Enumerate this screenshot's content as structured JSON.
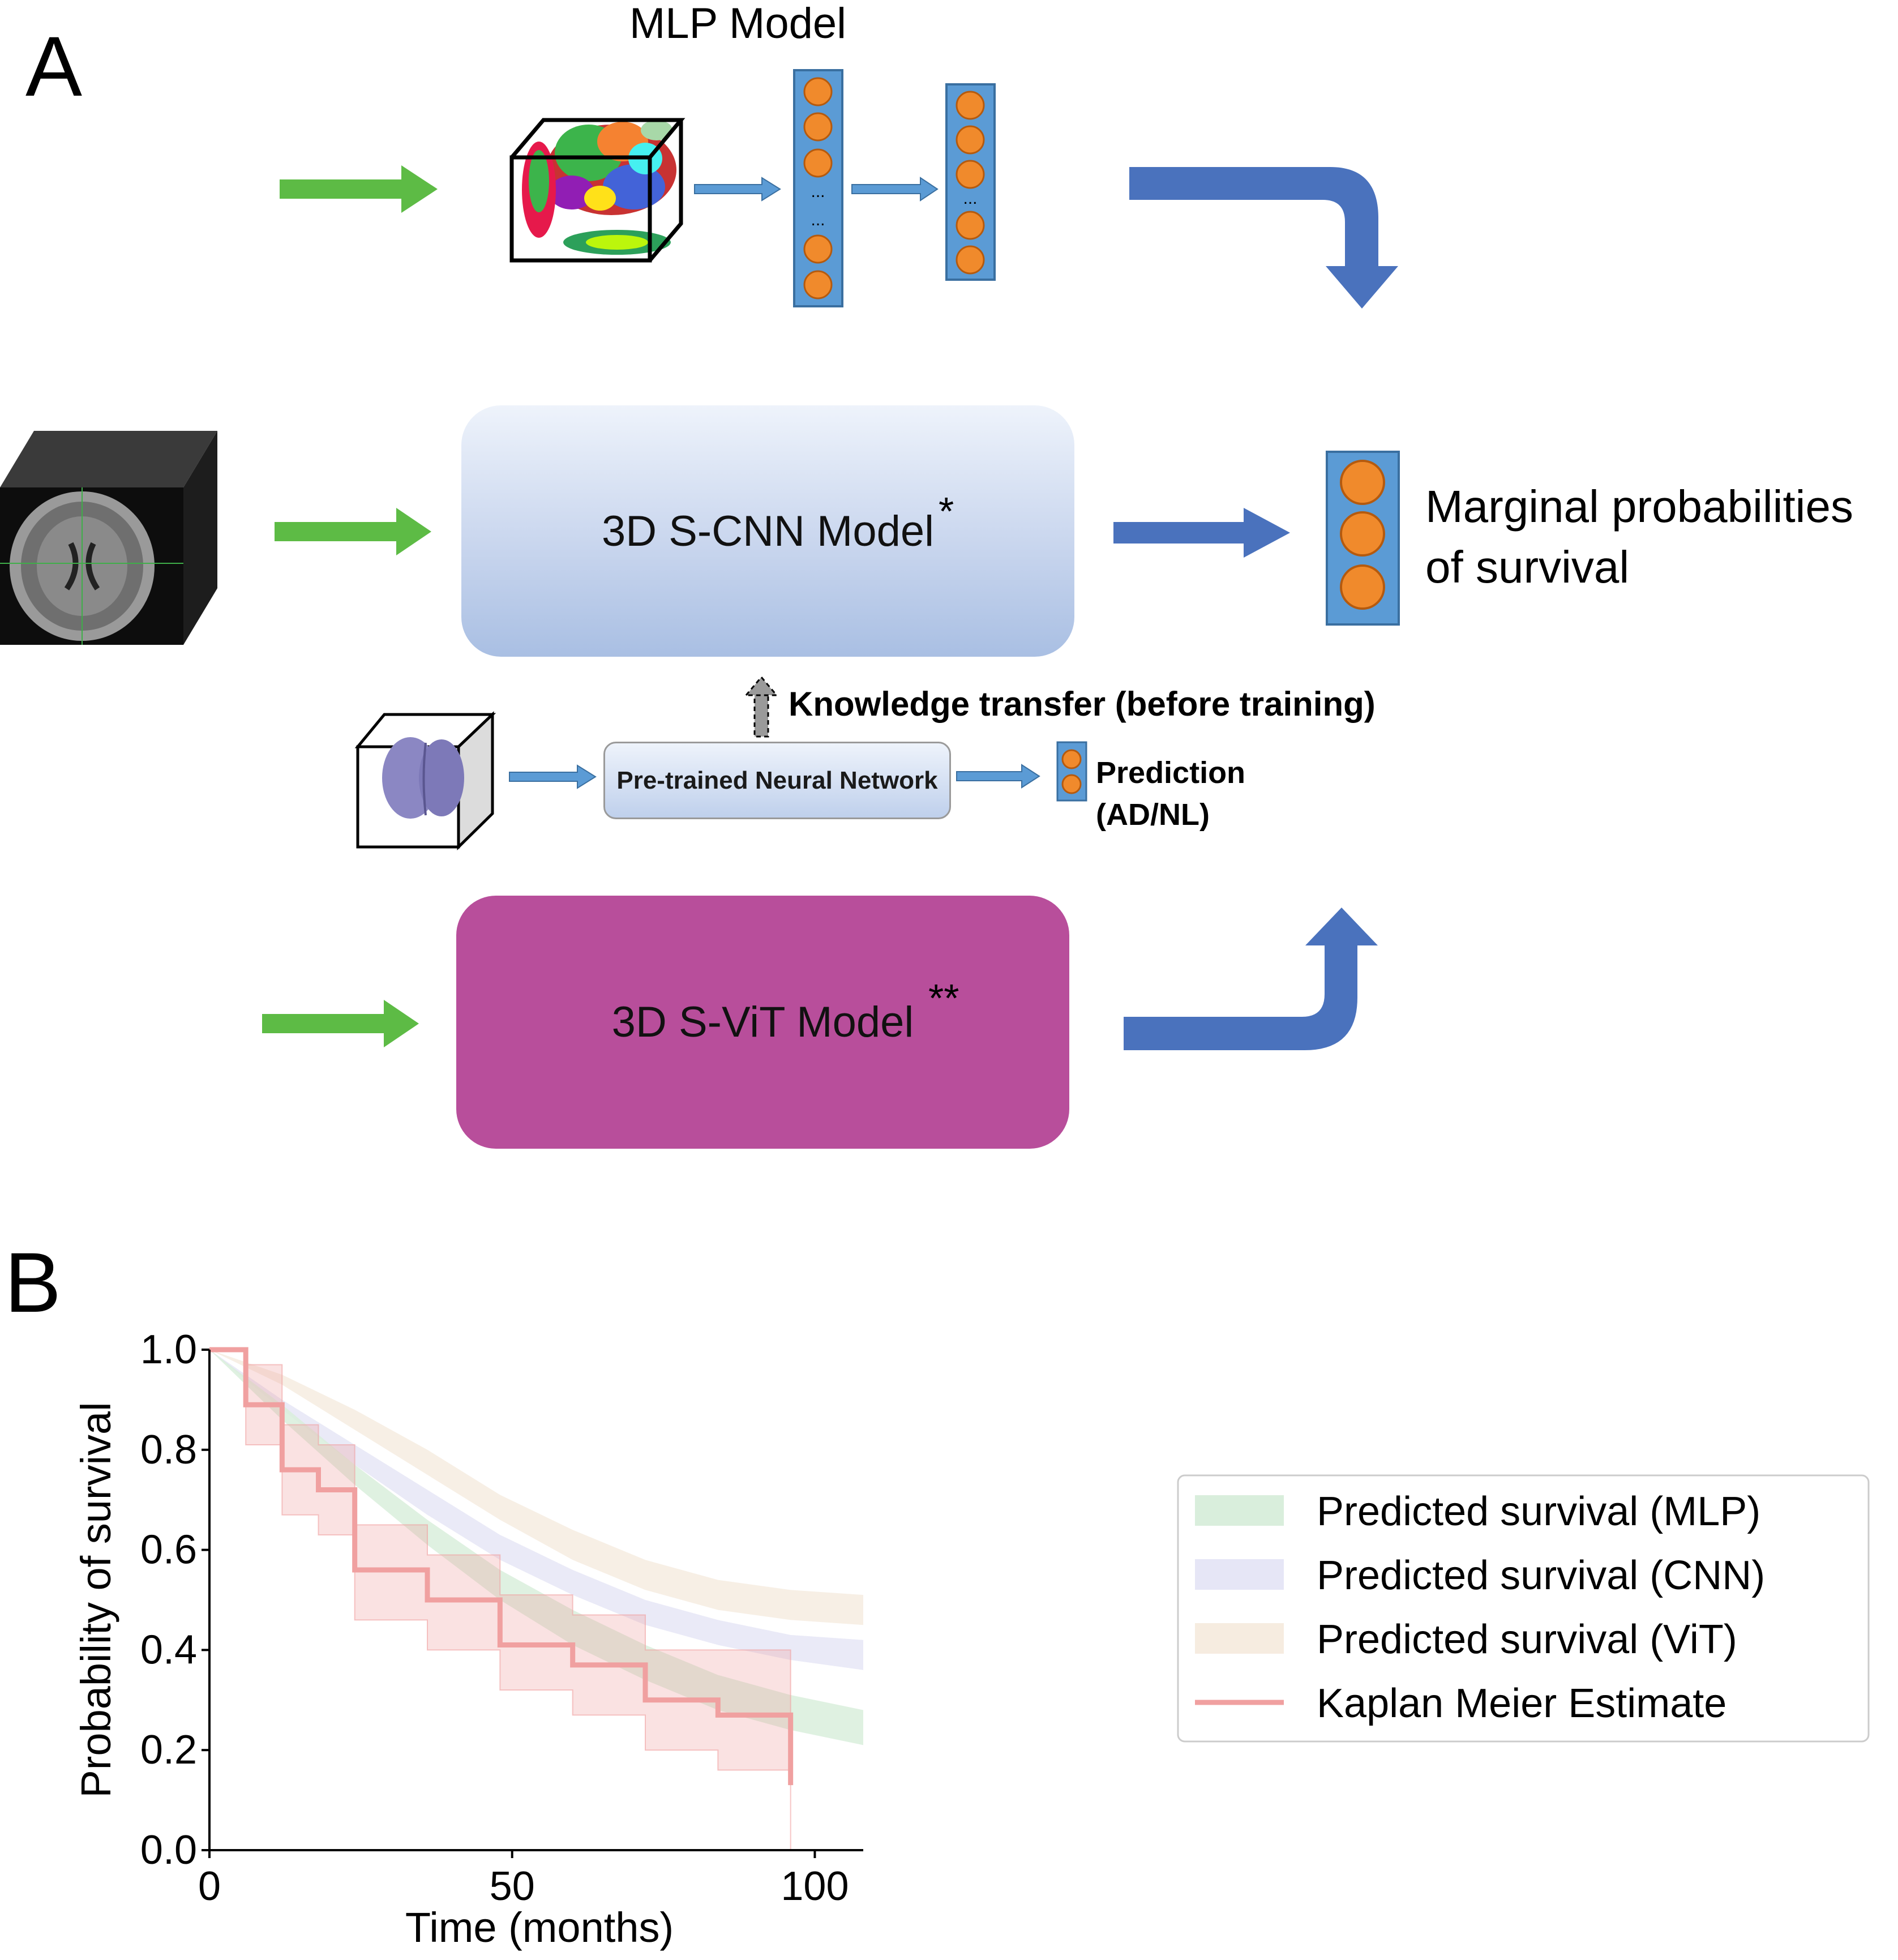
{
  "panels": {
    "a": "A",
    "b": "B"
  },
  "diagram": {
    "mlp_title": "MLP Model",
    "cnn_label": "3D S-CNN Model",
    "cnn_mark": "*",
    "vit_label": "3D S-ViT Model",
    "vit_mark": "**",
    "output_line1": "Marginal probabilities",
    "output_line2": "of survival",
    "transfer_label": "Knowledge transfer (before training)",
    "pretrained_label": "Pre-trained Neural Network",
    "prediction_line1": "Prediction",
    "prediction_line2": "(AD/NL)",
    "mlp_ellipsis": "...",
    "colors": {
      "green_arrow": "#5dbb45",
      "blue_arrow": "#4a72bd",
      "node": "#f08a2c",
      "layer": "#5b9bd5",
      "vit": "#b84e9b"
    }
  },
  "chart_data": {
    "type": "line",
    "xlabel": "Time (months)",
    "ylabel": "Probability of survival",
    "xlim": [
      0,
      108
    ],
    "ylim": [
      0,
      1.0
    ],
    "xticks": [
      0,
      50,
      100
    ],
    "yticks": [
      "0.0",
      "0.2",
      "0.4",
      "0.6",
      "0.8",
      "1.0"
    ],
    "legend_position": "right",
    "series": [
      {
        "name": "Predicted survival (MLP)",
        "kind": "band",
        "color": "#d9eedc",
        "x": [
          0,
          12,
          24,
          36,
          48,
          60,
          72,
          84,
          96,
          108
        ],
        "lower": [
          1.0,
          0.86,
          0.73,
          0.61,
          0.5,
          0.41,
          0.34,
          0.28,
          0.24,
          0.21
        ],
        "upper": [
          1.0,
          0.89,
          0.77,
          0.66,
          0.56,
          0.48,
          0.41,
          0.35,
          0.31,
          0.28
        ]
      },
      {
        "name": "Predicted survival (CNN)",
        "kind": "band",
        "color": "#e6e6f6",
        "x": [
          0,
          12,
          24,
          36,
          48,
          60,
          72,
          84,
          96,
          108
        ],
        "lower": [
          1.0,
          0.88,
          0.77,
          0.67,
          0.58,
          0.51,
          0.45,
          0.41,
          0.38,
          0.36
        ],
        "upper": [
          1.0,
          0.9,
          0.81,
          0.72,
          0.63,
          0.56,
          0.5,
          0.46,
          0.43,
          0.42
        ]
      },
      {
        "name": "Predicted survival (ViT)",
        "kind": "band",
        "color": "#f6ece0",
        "x": [
          0,
          12,
          24,
          36,
          48,
          60,
          72,
          84,
          96,
          108
        ],
        "lower": [
          1.0,
          0.93,
          0.84,
          0.75,
          0.66,
          0.58,
          0.52,
          0.48,
          0.46,
          0.45
        ],
        "upper": [
          1.0,
          0.95,
          0.88,
          0.8,
          0.71,
          0.64,
          0.58,
          0.54,
          0.52,
          0.51
        ]
      },
      {
        "name": "Kaplan Meier Estimate",
        "kind": "step",
        "color": "#f0a0a0",
        "x": [
          0,
          6,
          12,
          18,
          24,
          36,
          48,
          60,
          72,
          84,
          96
        ],
        "y": [
          1.0,
          0.89,
          0.76,
          0.72,
          0.56,
          0.5,
          0.41,
          0.37,
          0.3,
          0.27,
          0.13
        ],
        "ci_lower": [
          1.0,
          0.81,
          0.67,
          0.63,
          0.46,
          0.4,
          0.32,
          0.27,
          0.2,
          0.16,
          0.0
        ],
        "ci_upper": [
          1.0,
          0.97,
          0.85,
          0.81,
          0.65,
          0.59,
          0.51,
          0.47,
          0.4,
          0.4,
          0.4
        ]
      }
    ]
  }
}
